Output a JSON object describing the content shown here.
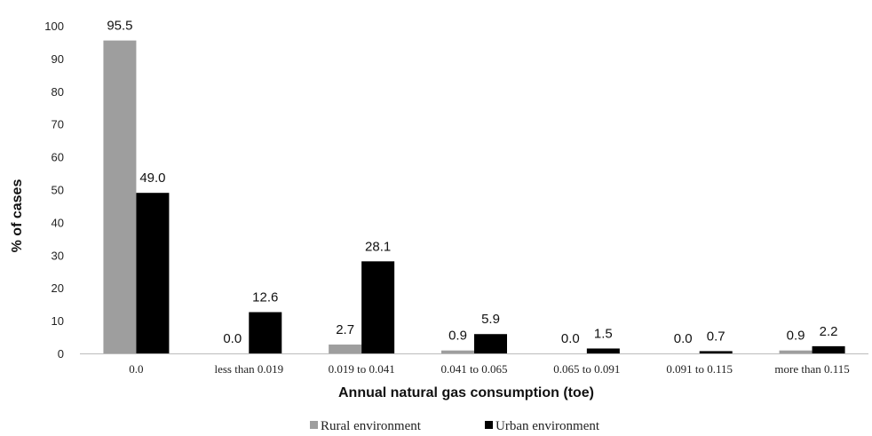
{
  "chart_data": {
    "type": "bar",
    "title": "",
    "xlabel": "Annual natural gas consumption (toe)",
    "ylabel": "% of cases",
    "ylim": [
      0,
      100
    ],
    "yticks": [
      0,
      10,
      20,
      30,
      40,
      50,
      60,
      70,
      80,
      90,
      100
    ],
    "categories": [
      "0.0",
      "less than 0.019",
      "0.019 to 0.041",
      "0.041 to 0.065",
      "0.065 to 0.091",
      "0.091 to 0.115",
      "more than 0.115"
    ],
    "series": [
      {
        "name": "Rural environment",
        "color": "#9e9e9e",
        "values": [
          95.5,
          0.0,
          2.7,
          0.9,
          0.0,
          0.0,
          0.9
        ]
      },
      {
        "name": "Urban environment",
        "color": "#000000",
        "values": [
          49.0,
          12.6,
          28.1,
          5.9,
          1.5,
          0.7,
          2.2
        ]
      }
    ],
    "data_labels": true,
    "legend_position": "bottom",
    "grid": false
  }
}
